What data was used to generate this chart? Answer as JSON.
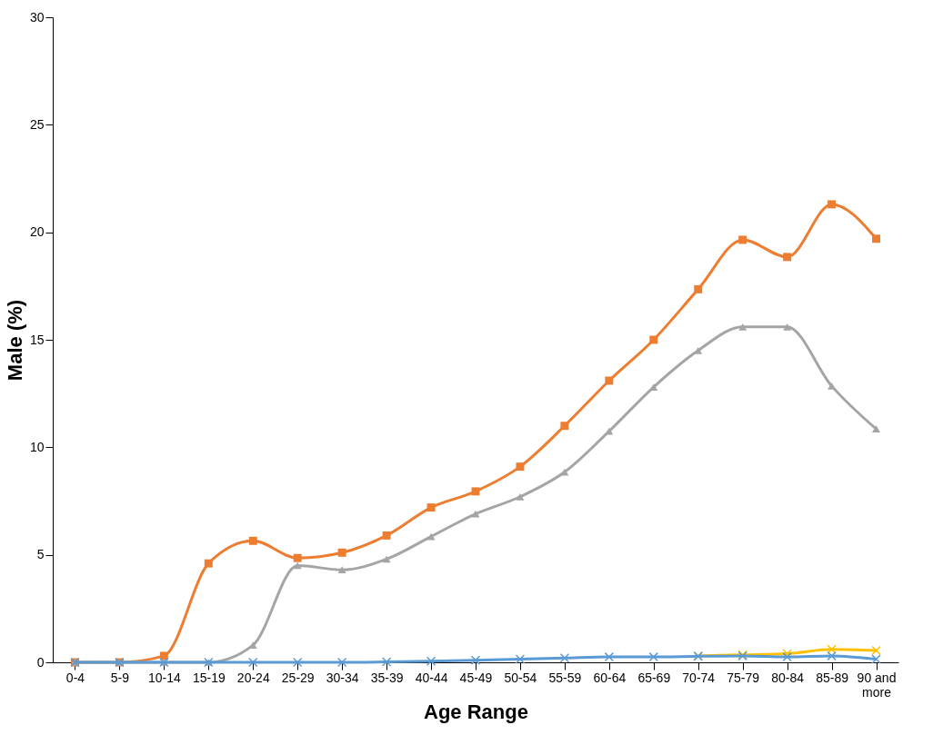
{
  "chart_data": {
    "type": "line",
    "xlabel": "Age Range",
    "ylabel": "Male (%)",
    "categories": [
      "0-4",
      "5-9",
      "10-14",
      "15-19",
      "20-24",
      "25-29",
      "30-34",
      "35-39",
      "40-44",
      "45-49",
      "50-54",
      "55-59",
      "60-64",
      "65-69",
      "70-74",
      "75-79",
      "80-84",
      "85-89",
      "90 and more"
    ],
    "ylim": [
      0,
      30
    ],
    "yticks": [
      0,
      5,
      10,
      15,
      20,
      25,
      30
    ],
    "grid": false,
    "line_style": "solid",
    "series": [
      {
        "color": "#ed7d31",
        "marker": "square",
        "values": [
          0,
          0,
          0.3,
          4.6,
          5.65,
          4.85,
          5.1,
          5.9,
          7.2,
          7.95,
          9.1,
          11.0,
          13.1,
          15.0,
          17.35,
          19.65,
          18.85,
          21.3,
          19.7
        ]
      },
      {
        "color": "#a5a5a5",
        "marker": "triangle",
        "values": [
          0,
          0,
          0,
          0,
          0.8,
          4.5,
          4.3,
          4.8,
          5.85,
          6.9,
          7.7,
          8.85,
          10.75,
          12.8,
          14.5,
          15.6,
          15.6,
          12.85,
          10.85
        ]
      },
      {
        "color": "#ffc000",
        "marker": "cross",
        "values": [
          null,
          null,
          null,
          null,
          null,
          null,
          null,
          null,
          null,
          null,
          null,
          null,
          null,
          null,
          0.3,
          0.35,
          0.4,
          0.6,
          0.55
        ]
      },
      {
        "color": "#5b9bd5",
        "marker": "cross",
        "values": [
          0,
          0,
          0,
          0,
          0,
          0,
          0,
          0.02,
          0.05,
          0.1,
          0.15,
          0.2,
          0.25,
          0.25,
          0.28,
          0.3,
          0.25,
          0.3,
          0.15
        ]
      }
    ]
  }
}
